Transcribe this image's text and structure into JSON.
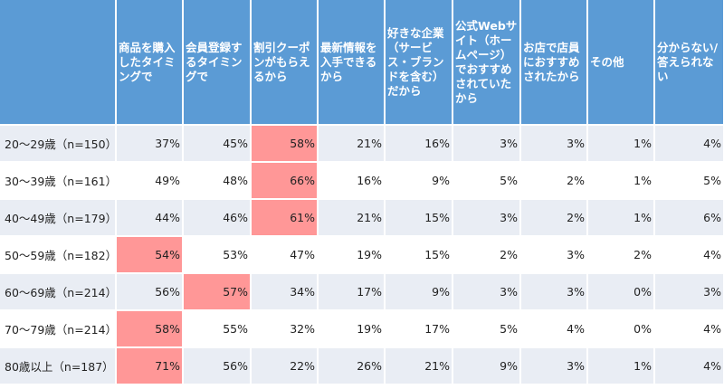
{
  "headers": [
    "",
    "商品を購入したタイミングで",
    "会員登録するタイミングで",
    "割引クーポンがもらえるから",
    "最新情報を入手できるから",
    "好きな企業（サービス・ブランドを含む）だから",
    "公式Webサイト（ホームページ）でおすすめされていたから",
    "お店で店員におすすめされたから",
    "その他",
    "分からない/答えられない"
  ],
  "rows": [
    {
      "label": "20～29歳（n=150）",
      "values": [
        "37%",
        "45%",
        "58%",
        "21%",
        "16%",
        "3%",
        "3%",
        "1%",
        "4%"
      ],
      "highlight": [
        2
      ]
    },
    {
      "label": "30～39歳（n=161）",
      "values": [
        "49%",
        "48%",
        "66%",
        "16%",
        "9%",
        "5%",
        "2%",
        "1%",
        "5%"
      ],
      "highlight": [
        2
      ]
    },
    {
      "label": "40～49歳（n=179）",
      "values": [
        "44%",
        "46%",
        "61%",
        "21%",
        "15%",
        "3%",
        "2%",
        "1%",
        "6%"
      ],
      "highlight": [
        2
      ]
    },
    {
      "label": "50～59歳（n=182）",
      "values": [
        "54%",
        "53%",
        "47%",
        "19%",
        "15%",
        "2%",
        "3%",
        "2%",
        "4%"
      ],
      "highlight": [
        0
      ]
    },
    {
      "label": "60～69歳（n=214）",
      "values": [
        "56%",
        "57%",
        "34%",
        "17%",
        "9%",
        "3%",
        "3%",
        "0%",
        "3%"
      ],
      "highlight": [
        1
      ]
    },
    {
      "label": "70～79歳（n=214）",
      "values": [
        "58%",
        "55%",
        "32%",
        "19%",
        "17%",
        "5%",
        "4%",
        "0%",
        "4%"
      ],
      "highlight": [
        0
      ]
    },
    {
      "label": "80歳以上（n=187）",
      "values": [
        "71%",
        "56%",
        "22%",
        "26%",
        "21%",
        "9%",
        "3%",
        "1%",
        "4%"
      ],
      "highlight": [
        0
      ]
    }
  ],
  "colors": {
    "header": "#5b9bd5",
    "highlight": "#ff9797",
    "stripe": "#e9edf4"
  }
}
